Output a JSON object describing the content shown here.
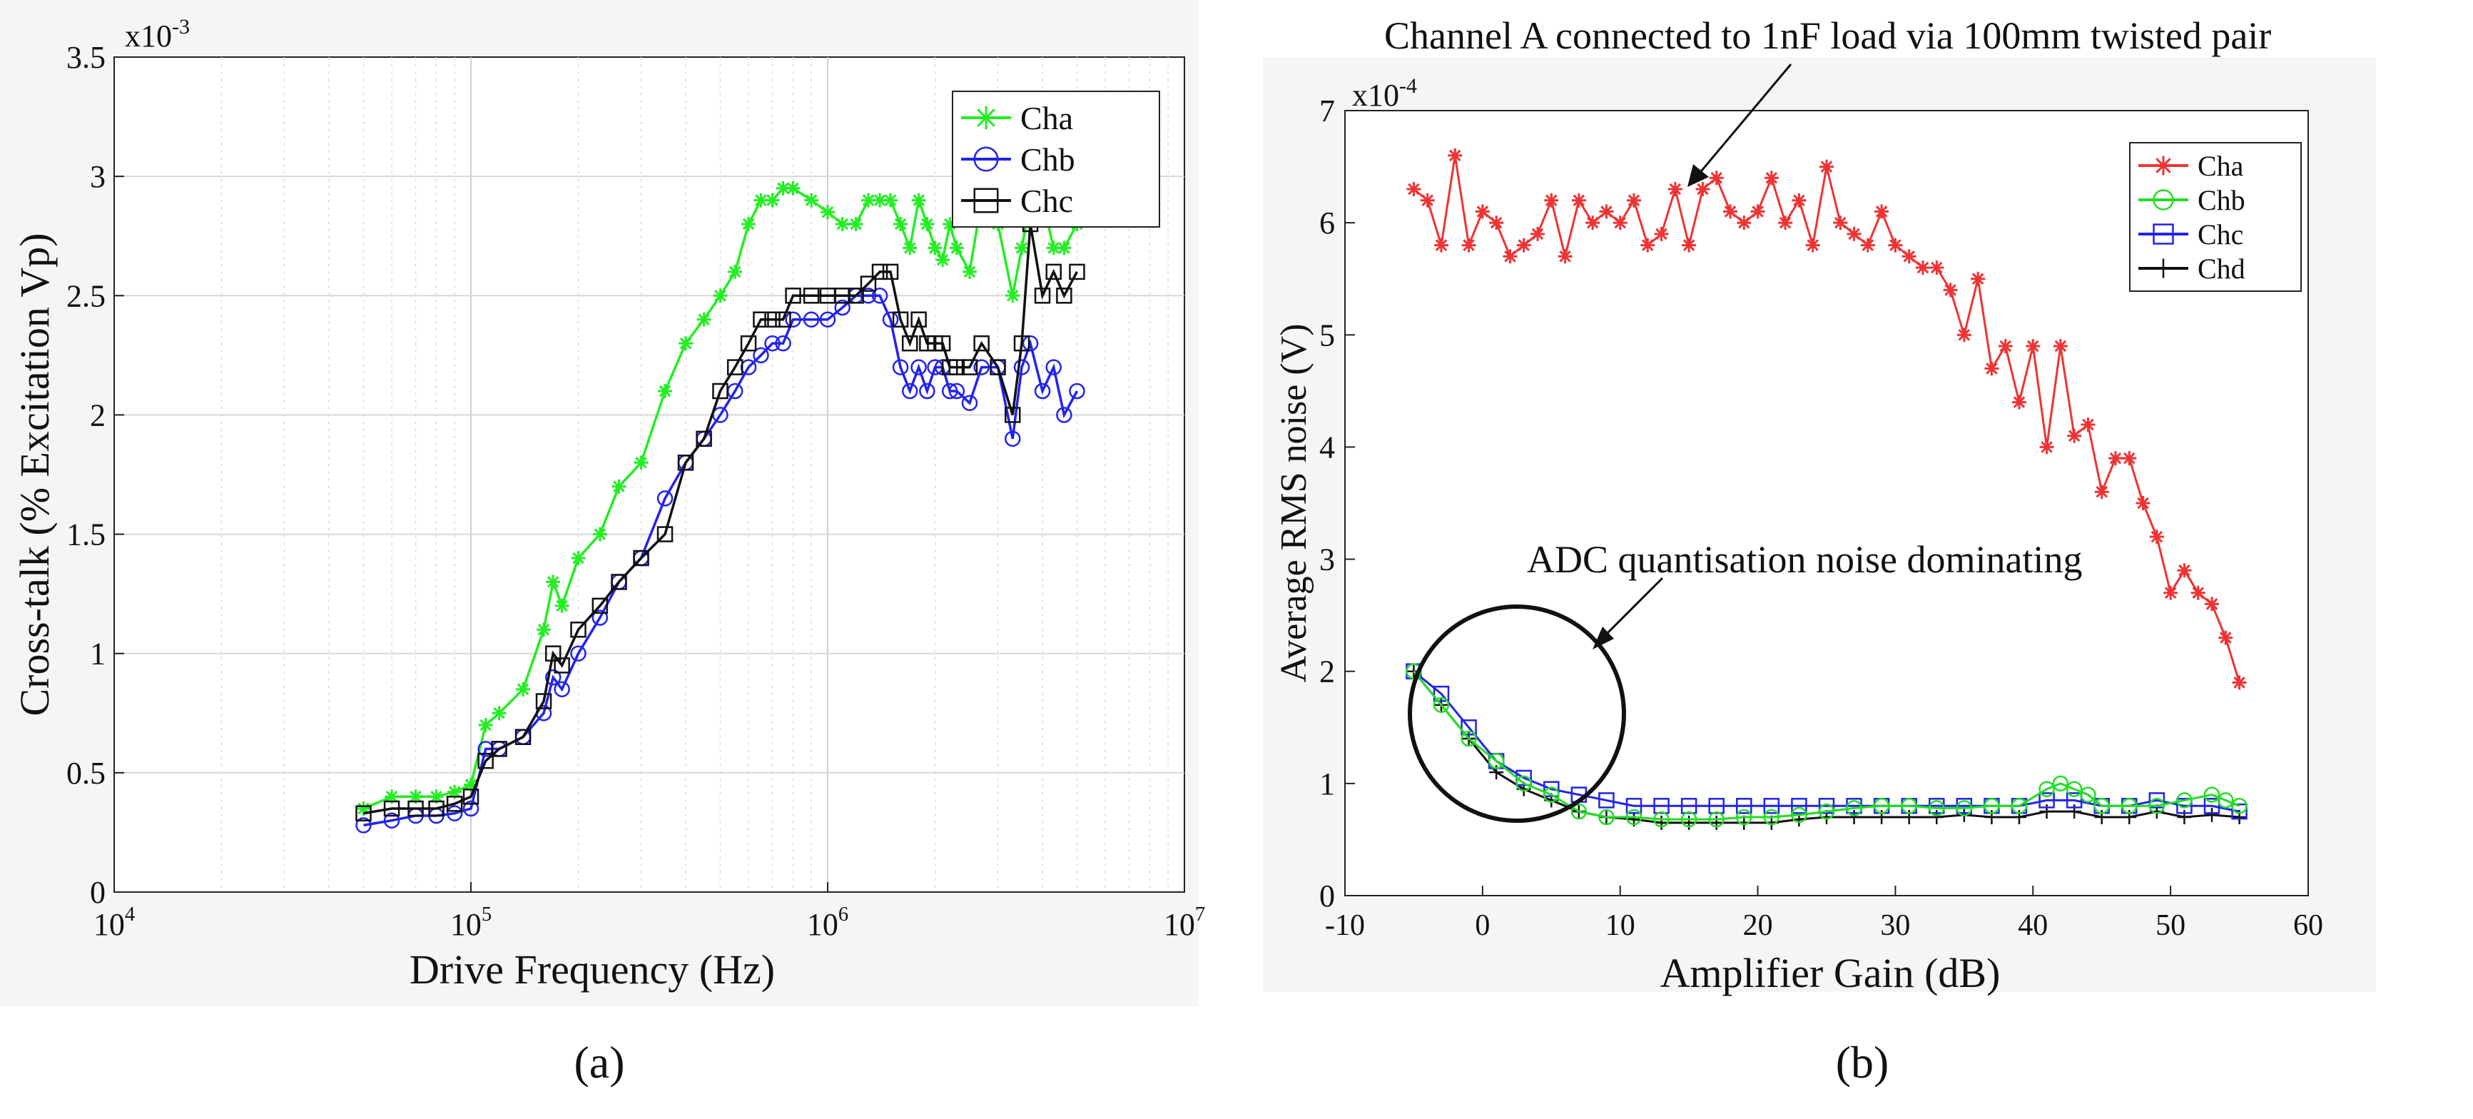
{
  "panel_labels": [
    "(a)",
    "(b)"
  ],
  "chart_data": [
    {
      "type": "line",
      "xscale": "log",
      "xlim": [
        10000,
        10000000
      ],
      "ylim": [
        0,
        0.0035
      ],
      "y_exponent_label": "x10",
      "y_exponent_power": "-3",
      "xlabel": "Drive Frequency (Hz)",
      "ylabel": "Cross-talk (% Excitation Vp)",
      "x_ticks": [
        10000,
        100000,
        1000000,
        10000000
      ],
      "x_tick_bases": [
        "10",
        "10",
        "10",
        "10"
      ],
      "x_tick_powers": [
        "4",
        "5",
        "6",
        "7"
      ],
      "y_ticks": [
        0,
        0.0005,
        0.001,
        0.0015,
        0.002,
        0.0025,
        0.003,
        0.0035
      ],
      "y_tick_labels": [
        "0",
        "0.5",
        "1",
        "1.5",
        "2",
        "2.5",
        "3",
        "3.5"
      ],
      "grid": true,
      "legend_position": "top-right",
      "series": [
        {
          "name": "Cha",
          "color": "#22ee22",
          "marker": "asterisk",
          "x": [
            50000,
            60000,
            70000,
            80000,
            90000,
            100000,
            110000,
            120000,
            140000,
            160000,
            170000,
            180000,
            200000,
            230000,
            260000,
            300000,
            350000,
            400000,
            450000,
            500000,
            550000,
            600000,
            650000,
            700000,
            750000,
            800000,
            900000,
            1000000,
            1100000,
            1200000,
            1300000,
            1400000,
            1500000,
            1600000,
            1700000,
            1800000,
            1900000,
            2000000,
            2100000,
            2200000,
            2300000,
            2500000,
            2700000,
            3000000,
            3300000,
            3500000,
            3700000,
            4000000,
            4300000,
            4600000,
            5000000
          ],
          "y": [
            0.00035,
            0.0004,
            0.0004,
            0.0004,
            0.00042,
            0.00045,
            0.0007,
            0.00075,
            0.00085,
            0.0011,
            0.0013,
            0.0012,
            0.0014,
            0.0015,
            0.0017,
            0.0018,
            0.0021,
            0.0023,
            0.0024,
            0.0025,
            0.0026,
            0.0028,
            0.0029,
            0.0029,
            0.00295,
            0.00295,
            0.0029,
            0.00285,
            0.0028,
            0.0028,
            0.0029,
            0.0029,
            0.0029,
            0.0028,
            0.0027,
            0.0029,
            0.0028,
            0.0027,
            0.00265,
            0.0028,
            0.0027,
            0.0026,
            0.0029,
            0.0028,
            0.0025,
            0.0027,
            0.0029,
            0.0029,
            0.0027,
            0.0027,
            0.0028
          ]
        },
        {
          "name": "Chb",
          "color": "#2222ee",
          "marker": "circle",
          "x": [
            50000,
            60000,
            70000,
            80000,
            90000,
            100000,
            110000,
            120000,
            140000,
            160000,
            170000,
            180000,
            200000,
            230000,
            260000,
            300000,
            350000,
            400000,
            450000,
            500000,
            550000,
            600000,
            650000,
            700000,
            750000,
            800000,
            900000,
            1000000,
            1100000,
            1200000,
            1300000,
            1400000,
            1500000,
            1600000,
            1700000,
            1800000,
            1900000,
            2000000,
            2100000,
            2200000,
            2300000,
            2500000,
            2700000,
            3000000,
            3300000,
            3500000,
            3700000,
            4000000,
            4300000,
            4600000,
            5000000
          ],
          "y": [
            0.00028,
            0.0003,
            0.00032,
            0.00032,
            0.00033,
            0.00035,
            0.0006,
            0.0006,
            0.00065,
            0.00075,
            0.0009,
            0.00085,
            0.001,
            0.00115,
            0.0013,
            0.0014,
            0.00165,
            0.0018,
            0.0019,
            0.002,
            0.0021,
            0.0022,
            0.00225,
            0.0023,
            0.0023,
            0.0024,
            0.0024,
            0.0024,
            0.00245,
            0.0025,
            0.0025,
            0.0025,
            0.0024,
            0.0022,
            0.0021,
            0.0022,
            0.0021,
            0.0022,
            0.0022,
            0.0021,
            0.0021,
            0.00205,
            0.0022,
            0.0022,
            0.0019,
            0.0022,
            0.0023,
            0.0021,
            0.0022,
            0.002,
            0.0021
          ]
        },
        {
          "name": "Chc",
          "color": "#111111",
          "marker": "square",
          "x": [
            50000,
            60000,
            70000,
            80000,
            90000,
            100000,
            110000,
            120000,
            140000,
            160000,
            170000,
            180000,
            200000,
            230000,
            260000,
            300000,
            350000,
            400000,
            450000,
            500000,
            550000,
            600000,
            650000,
            700000,
            750000,
            800000,
            900000,
            1000000,
            1100000,
            1200000,
            1300000,
            1400000,
            1500000,
            1600000,
            1700000,
            1800000,
            1900000,
            2000000,
            2100000,
            2200000,
            2300000,
            2500000,
            2700000,
            3000000,
            3300000,
            3500000,
            3700000,
            4000000,
            4300000,
            4600000,
            5000000
          ],
          "y": [
            0.00033,
            0.00035,
            0.00035,
            0.00035,
            0.00037,
            0.0004,
            0.00055,
            0.0006,
            0.00065,
            0.0008,
            0.001,
            0.00095,
            0.0011,
            0.0012,
            0.0013,
            0.0014,
            0.0015,
            0.0018,
            0.0019,
            0.0021,
            0.0022,
            0.0023,
            0.0024,
            0.0024,
            0.0024,
            0.0025,
            0.0025,
            0.0025,
            0.0025,
            0.0025,
            0.00255,
            0.0026,
            0.0026,
            0.0024,
            0.0023,
            0.0024,
            0.0023,
            0.0023,
            0.0023,
            0.0022,
            0.0022,
            0.0022,
            0.0023,
            0.0022,
            0.002,
            0.0023,
            0.0028,
            0.0025,
            0.0026,
            0.0025,
            0.0026
          ]
        }
      ]
    },
    {
      "type": "line",
      "xlim": [
        -10,
        60
      ],
      "ylim": [
        0,
        0.0007
      ],
      "y_exponent_label": "x10",
      "y_exponent_power": "-4",
      "xlabel": "Amplifier Gain (dB)",
      "ylabel": "Average RMS noise (V)",
      "x_ticks": [
        -10,
        0,
        10,
        20,
        30,
        40,
        50,
        60
      ],
      "x_tick_labels": [
        "-10",
        "0",
        "10",
        "20",
        "30",
        "40",
        "50",
        "60"
      ],
      "y_ticks": [
        0,
        0.0001,
        0.0002,
        0.0003,
        0.0004,
        0.0005,
        0.0006,
        0.0007
      ],
      "y_tick_labels": [
        "0",
        "1",
        "2",
        "3",
        "4",
        "5",
        "6",
        "7"
      ],
      "grid": false,
      "legend_position": "top-right",
      "annotations": [
        "Channel A connected to 1nF load via 100mm twisted pair",
        "ADC quantisation noise dominating"
      ],
      "series": [
        {
          "name": "Cha",
          "color": "#ee3333",
          "marker": "asterisk",
          "x": [
            -5,
            -4,
            -3,
            -2,
            -1,
            0,
            1,
            2,
            3,
            4,
            5,
            6,
            7,
            8,
            9,
            10,
            11,
            12,
            13,
            14,
            15,
            16,
            17,
            18,
            19,
            20,
            21,
            22,
            23,
            24,
            25,
            26,
            27,
            28,
            29,
            30,
            31,
            32,
            33,
            34,
            35,
            36,
            37,
            38,
            39,
            40,
            41,
            42,
            43,
            44,
            45,
            46,
            47,
            48,
            49,
            50,
            51,
            52,
            53,
            54,
            55
          ],
          "y": [
            0.00063,
            0.00062,
            0.00058,
            0.00066,
            0.00058,
            0.00061,
            0.0006,
            0.00057,
            0.00058,
            0.00059,
            0.00062,
            0.00057,
            0.00062,
            0.0006,
            0.00061,
            0.0006,
            0.00062,
            0.00058,
            0.00059,
            0.00063,
            0.00058,
            0.00063,
            0.00064,
            0.00061,
            0.0006,
            0.00061,
            0.00064,
            0.0006,
            0.00062,
            0.00058,
            0.00065,
            0.0006,
            0.00059,
            0.00058,
            0.00061,
            0.00058,
            0.00057,
            0.00056,
            0.00056,
            0.00054,
            0.0005,
            0.00055,
            0.00047,
            0.00049,
            0.00044,
            0.00049,
            0.0004,
            0.00049,
            0.00041,
            0.00042,
            0.00036,
            0.00039,
            0.00039,
            0.00035,
            0.00032,
            0.00027,
            0.00029,
            0.00027,
            0.00026,
            0.00023,
            0.00019
          ]
        },
        {
          "name": "Chb",
          "color": "#22dd22",
          "marker": "circle",
          "x": [
            -5,
            -3,
            -1,
            1,
            3,
            5,
            7,
            9,
            11,
            13,
            15,
            17,
            19,
            21,
            23,
            25,
            27,
            29,
            31,
            33,
            35,
            37,
            39,
            41,
            42,
            43,
            44,
            45,
            47,
            49,
            51,
            53,
            54,
            55
          ],
          "y": [
            0.0002,
            0.00017,
            0.00014,
            0.00012,
            0.0001,
            9e-05,
            7.5e-05,
            7e-05,
            7e-05,
            6.8e-05,
            6.8e-05,
            6.8e-05,
            7e-05,
            7e-05,
            7.2e-05,
            7.5e-05,
            7.8e-05,
            8e-05,
            8e-05,
            7.8e-05,
            7.8e-05,
            8e-05,
            8e-05,
            9.5e-05,
            0.0001,
            9.5e-05,
            9e-05,
            8e-05,
            8e-05,
            8e-05,
            8.5e-05,
            9e-05,
            8.5e-05,
            8e-05
          ]
        },
        {
          "name": "Chc",
          "color": "#2222ee",
          "marker": "square",
          "x": [
            -5,
            -3,
            -1,
            1,
            3,
            5,
            7,
            9,
            11,
            13,
            15,
            17,
            19,
            21,
            23,
            25,
            27,
            29,
            31,
            33,
            35,
            37,
            39,
            41,
            43,
            45,
            47,
            49,
            51,
            53,
            55
          ],
          "y": [
            0.0002,
            0.00018,
            0.00015,
            0.00012,
            0.000105,
            9.5e-05,
            9e-05,
            8.5e-05,
            8e-05,
            8e-05,
            8e-05,
            8e-05,
            8e-05,
            8e-05,
            8e-05,
            8e-05,
            8e-05,
            8e-05,
            8e-05,
            8e-05,
            8e-05,
            8e-05,
            8e-05,
            8.5e-05,
            8.5e-05,
            8e-05,
            8e-05,
            8.5e-05,
            8e-05,
            8e-05,
            7.5e-05
          ]
        },
        {
          "name": "Chd",
          "color": "#111111",
          "marker": "plus",
          "x": [
            -5,
            -3,
            -1,
            1,
            3,
            5,
            7,
            9,
            11,
            13,
            15,
            17,
            19,
            21,
            23,
            25,
            27,
            29,
            31,
            33,
            35,
            37,
            39,
            41,
            43,
            45,
            47,
            49,
            51,
            53,
            55
          ],
          "y": [
            0.0002,
            0.00017,
            0.00014,
            0.00011,
            9.5e-05,
            8.5e-05,
            7.5e-05,
            7e-05,
            6.8e-05,
            6.5e-05,
            6.5e-05,
            6.5e-05,
            6.5e-05,
            6.5e-05,
            6.8e-05,
            7e-05,
            7e-05,
            7e-05,
            7e-05,
            7e-05,
            7.2e-05,
            7e-05,
            7e-05,
            7.5e-05,
            7.5e-05,
            7e-05,
            7e-05,
            7.5e-05,
            7e-05,
            7.2e-05,
            7e-05
          ]
        }
      ]
    }
  ]
}
